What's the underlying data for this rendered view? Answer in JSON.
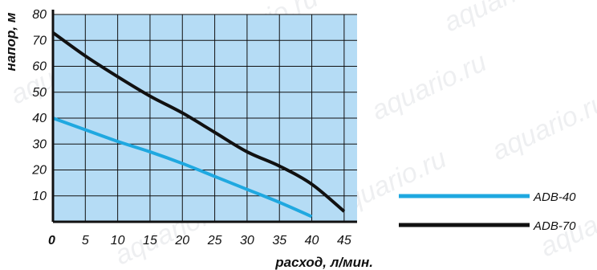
{
  "watermark": "aquario.ru",
  "chart_data": {
    "type": "line",
    "xlabel": "расход, л/мин.",
    "ylabel": "напор, м",
    "xlim": [
      0,
      47
    ],
    "ylim": [
      0,
      80
    ],
    "xticks": [
      0,
      5,
      10,
      15,
      20,
      25,
      30,
      35,
      40,
      45
    ],
    "yticks": [
      10,
      20,
      30,
      40,
      50,
      60,
      70,
      80
    ],
    "grid": true,
    "legend_position": "right",
    "plot_background": "#b5dcf5",
    "series": [
      {
        "name": "ADB-40",
        "color": "#1fa8e0",
        "x": [
          0,
          5,
          10,
          15,
          20,
          25,
          30,
          35,
          40
        ],
        "y": [
          40,
          35.5,
          31,
          27,
          22.5,
          17.5,
          12.5,
          7.5,
          2
        ]
      },
      {
        "name": "ADB-70",
        "color": "#111111",
        "x": [
          0,
          5,
          10,
          15,
          20,
          25,
          30,
          35,
          40,
          45
        ],
        "y": [
          73,
          64,
          56,
          48.5,
          42,
          34.5,
          27,
          21.5,
          14.5,
          4
        ]
      }
    ]
  }
}
